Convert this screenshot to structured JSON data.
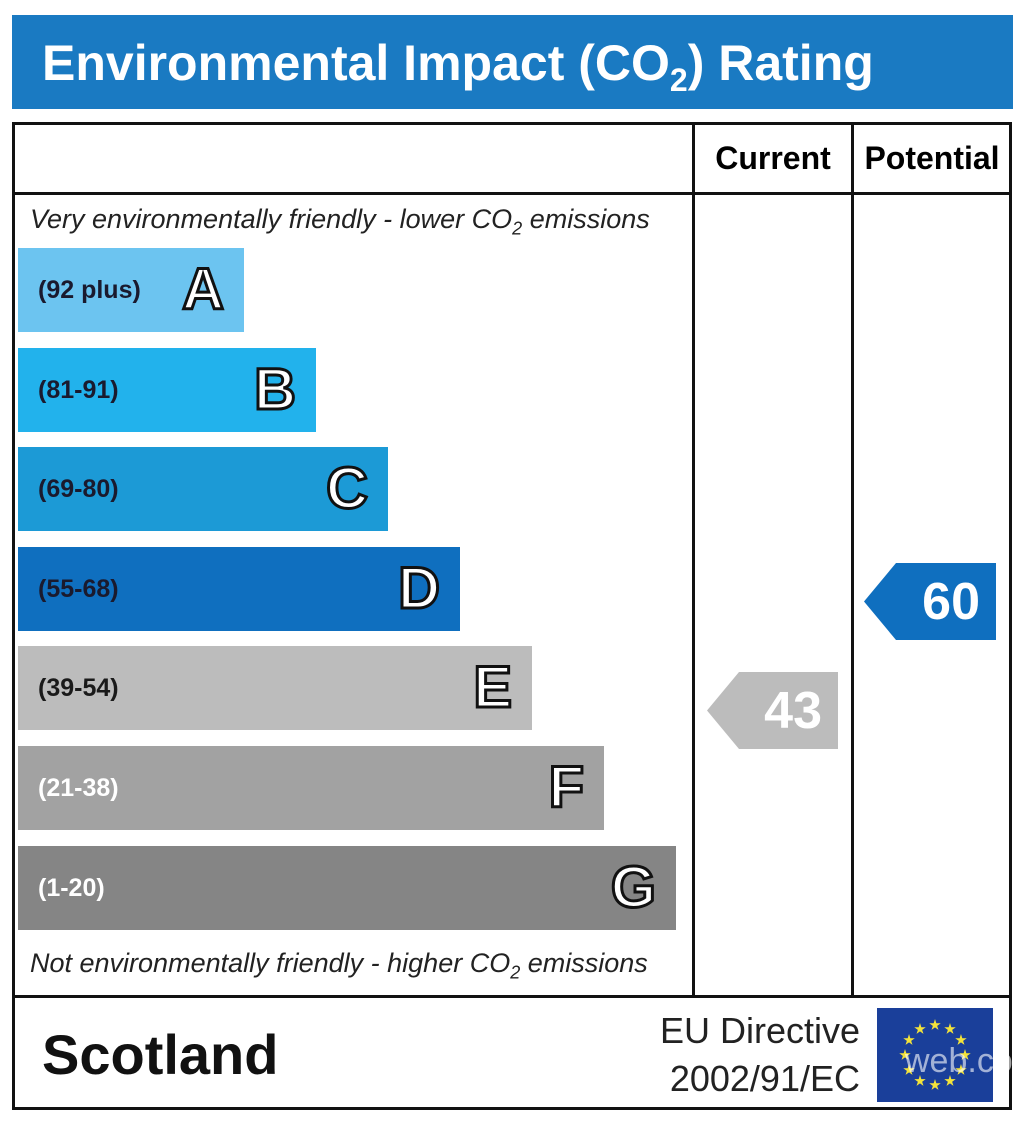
{
  "title": {
    "main": "Environmental Impact (CO",
    "sub": "2",
    "tail": ") Rating"
  },
  "columns": {
    "current": "Current",
    "potential": "Potential"
  },
  "notes": {
    "top": {
      "pre": "Very environmentally friendly - lower CO",
      "sub": "2",
      "post": " emissions"
    },
    "bottom": {
      "pre": "Not environmentally friendly - higher CO",
      "sub": "2",
      "post": " emissions"
    }
  },
  "chart_data": {
    "type": "bar",
    "title": "Environmental Impact (CO2) Rating",
    "bands": [
      {
        "letter": "A",
        "range": "(92 plus)",
        "color": "#6cc4f0",
        "text_color": "#1a1a2e"
      },
      {
        "letter": "B",
        "range": "(81-91)",
        "color": "#22b2ec",
        "text_color": "#1a1a2e"
      },
      {
        "letter": "C",
        "range": "(69-80)",
        "color": "#1c9ad6",
        "text_color": "#1a1a2e"
      },
      {
        "letter": "D",
        "range": "(55-68)",
        "color": "#0f6fbf",
        "text_color": "#1a1a2e"
      },
      {
        "letter": "E",
        "range": "(39-54)",
        "color": "#bcbcbc",
        "text_color": "#1a1a1a"
      },
      {
        "letter": "F",
        "range": "(21-38)",
        "color": "#a2a2a2",
        "text_color": "#ffffff"
      },
      {
        "letter": "G",
        "range": "(1-20)",
        "color": "#858585",
        "text_color": "#ffffff"
      }
    ],
    "current": {
      "value": "43",
      "band": "E",
      "color": "#bcbcbc"
    },
    "potential": {
      "value": "60",
      "band": "D",
      "color": "#0f6fbf"
    }
  },
  "footer": {
    "region": "Scotland",
    "directive_line1": "EU Directive",
    "directive_line2": "2002/91/EC",
    "watermark": "web.com"
  }
}
